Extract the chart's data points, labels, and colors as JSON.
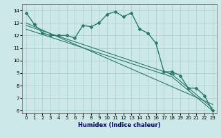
{
  "xlabel": "Humidex (Indice chaleur)",
  "ylabel": "",
  "background_color": "#cce8e8",
  "grid_color": "#aacccc",
  "line_color": "#2a7a6a",
  "xlim": [
    -0.5,
    23.5
  ],
  "ylim": [
    5.8,
    14.5
  ],
  "yticks": [
    6,
    7,
    8,
    9,
    10,
    11,
    12,
    13,
    14
  ],
  "xticks": [
    0,
    1,
    2,
    3,
    4,
    5,
    6,
    7,
    8,
    9,
    10,
    11,
    12,
    13,
    14,
    15,
    16,
    17,
    18,
    19,
    20,
    21,
    22,
    23
  ],
  "series_main": {
    "x": [
      0,
      1,
      2,
      3,
      4,
      5,
      6,
      7,
      8,
      9,
      10,
      11,
      12,
      13,
      14,
      15,
      16,
      17,
      18,
      19,
      20,
      21,
      22,
      23
    ],
    "y": [
      13.8,
      12.9,
      12.2,
      12.0,
      12.0,
      12.0,
      11.8,
      12.8,
      12.7,
      13.0,
      13.7,
      13.9,
      13.5,
      13.8,
      12.5,
      12.2,
      11.4,
      9.1,
      9.1,
      8.8,
      7.8,
      7.8,
      7.2,
      6.0
    ]
  },
  "series_lines": [
    {
      "x": [
        0,
        23
      ],
      "y": [
        13.0,
        6.5
      ]
    },
    {
      "x": [
        0,
        18,
        23
      ],
      "y": [
        12.8,
        8.9,
        6.2
      ]
    },
    {
      "x": [
        0,
        18,
        23
      ],
      "y": [
        12.5,
        8.7,
        6.0
      ]
    }
  ],
  "triangle_x": 18,
  "triangle_y": 9.05,
  "xlabel_color": "#000077",
  "xlabel_fontsize": 6,
  "tick_fontsize": 5
}
